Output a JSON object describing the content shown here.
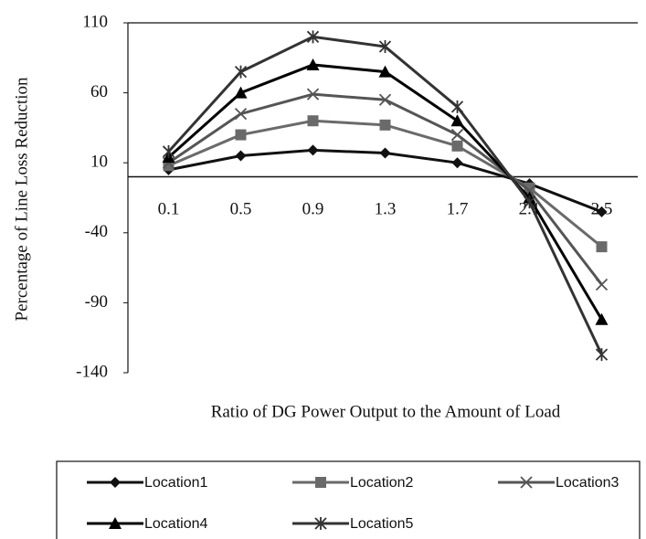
{
  "chart_data": {
    "type": "line",
    "x_label": "Ratio of DG Power Output to the Amount of Load",
    "y_label": "Percentage of Line Loss Reduction",
    "categories": [
      "0.1",
      "0.5",
      "0.9",
      "1.3",
      "1.7",
      "2.1",
      "2.5"
    ],
    "ylim": [
      -140,
      110
    ],
    "yticks": [
      110,
      60,
      10,
      -40,
      -90,
      -140
    ],
    "legend": "bottom",
    "series": [
      {
        "name": "Location1",
        "color": "#111111",
        "marker": "diamond",
        "values": [
          5,
          15,
          19,
          17,
          10,
          -5,
          -25
        ]
      },
      {
        "name": "Location2",
        "color": "#6a6a6a",
        "marker": "square",
        "values": [
          8,
          30,
          40,
          37,
          22,
          -8,
          -50
        ]
      },
      {
        "name": "Location3",
        "color": "#555555",
        "marker": "x",
        "values": [
          10,
          45,
          59,
          55,
          30,
          -10,
          -77
        ]
      },
      {
        "name": "Location4",
        "color": "#000000",
        "marker": "triangle",
        "values": [
          14,
          60,
          80,
          75,
          40,
          -15,
          -102
        ]
      },
      {
        "name": "Location5",
        "color": "#333333",
        "marker": "star",
        "values": [
          18,
          75,
          100,
          93,
          50,
          -18,
          -127
        ]
      }
    ]
  }
}
